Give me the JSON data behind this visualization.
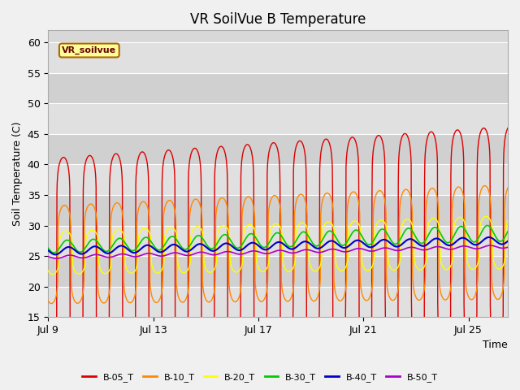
{
  "title": "VR SoilVue B Temperature",
  "ylabel": "Soil Temperature (C)",
  "xlabel": "Time",
  "legend_label": "VR_soilvue",
  "ylim": [
    15,
    62
  ],
  "yticks": [
    15,
    20,
    25,
    30,
    35,
    40,
    45,
    50,
    55,
    60
  ],
  "x_start_day": 9,
  "n_days": 17.5,
  "x_tick_days": [
    9,
    13,
    17,
    21,
    25
  ],
  "x_tick_labels": [
    "Jul 9",
    "Jul 13",
    "Jul 17",
    "Jul 21",
    "Jul 25"
  ],
  "series": [
    {
      "label": "B-05_T",
      "color": "#dd0000"
    },
    {
      "label": "B-10_T",
      "color": "#ff8800"
    },
    {
      "label": "B-20_T",
      "color": "#ffff00"
    },
    {
      "label": "B-30_T",
      "color": "#00cc00"
    },
    {
      "label": "B-40_T",
      "color": "#0000cc"
    },
    {
      "label": "B-50_T",
      "color": "#aa00cc"
    }
  ],
  "fig_bg_color": "#f0f0f0",
  "plot_bg_color": "#d8d8d8",
  "stripe_color": "#cccccc",
  "title_fontsize": 12,
  "axis_fontsize": 9,
  "tick_fontsize": 9
}
